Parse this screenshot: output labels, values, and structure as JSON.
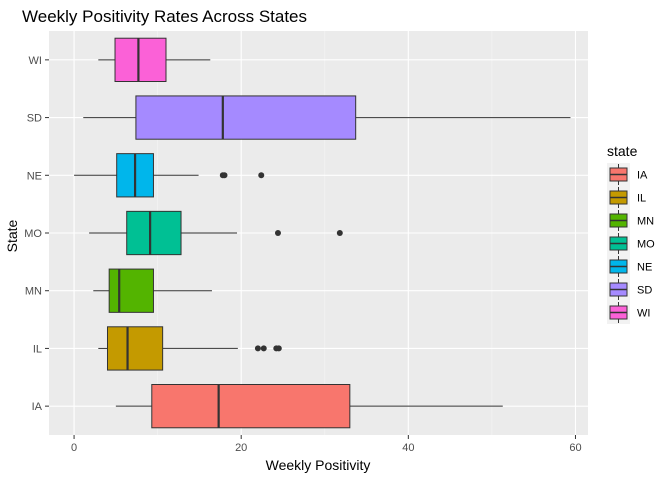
{
  "chart_data": {
    "type": "boxplot",
    "orientation": "horizontal",
    "title": "Weekly Positivity Rates Across States",
    "xlabel": "Weekly Positivity",
    "ylabel": "State",
    "xlim": [
      -3,
      61.5
    ],
    "xticks": [
      0,
      20,
      40,
      60
    ],
    "grid": true,
    "legend_title": "state",
    "legend_position": "right",
    "categories": [
      "IA",
      "IL",
      "MN",
      "MO",
      "NE",
      "SD",
      "WI"
    ],
    "colors": {
      "IA": "#F8766D",
      "IL": "#C49A00",
      "MN": "#53B400",
      "MO": "#00C094",
      "NE": "#00B6EB",
      "SD": "#A58AFF",
      "WI": "#FB61D7"
    },
    "series": [
      {
        "state": "IA",
        "whisker_low": 5.0,
        "q1": 9.3,
        "median": 17.3,
        "q3": 33.0,
        "whisker_high": 51.3,
        "outliers": []
      },
      {
        "state": "IL",
        "whisker_low": 2.9,
        "q1": 4.0,
        "median": 6.4,
        "q3": 10.6,
        "whisker_high": 19.6,
        "outliers": [
          22.0,
          22.7,
          24.2,
          24.5
        ]
      },
      {
        "state": "MN",
        "whisker_low": 2.3,
        "q1": 4.2,
        "median": 5.4,
        "q3": 9.5,
        "whisker_high": 16.5,
        "outliers": []
      },
      {
        "state": "MO",
        "whisker_low": 1.8,
        "q1": 6.3,
        "median": 9.1,
        "q3": 12.8,
        "whisker_high": 19.5,
        "outliers": [
          24.4,
          31.8
        ]
      },
      {
        "state": "NE",
        "whisker_low": 0.0,
        "q1": 5.1,
        "median": 7.3,
        "q3": 9.5,
        "whisker_high": 14.9,
        "outliers": [
          17.8,
          18.0,
          22.4
        ]
      },
      {
        "state": "SD",
        "whisker_low": 1.1,
        "q1": 7.4,
        "median": 17.8,
        "q3": 33.7,
        "whisker_high": 59.4,
        "outliers": []
      },
      {
        "state": "WI",
        "whisker_low": 2.9,
        "q1": 4.9,
        "median": 7.7,
        "q3": 11.0,
        "whisker_high": 16.3,
        "outliers": []
      }
    ]
  }
}
